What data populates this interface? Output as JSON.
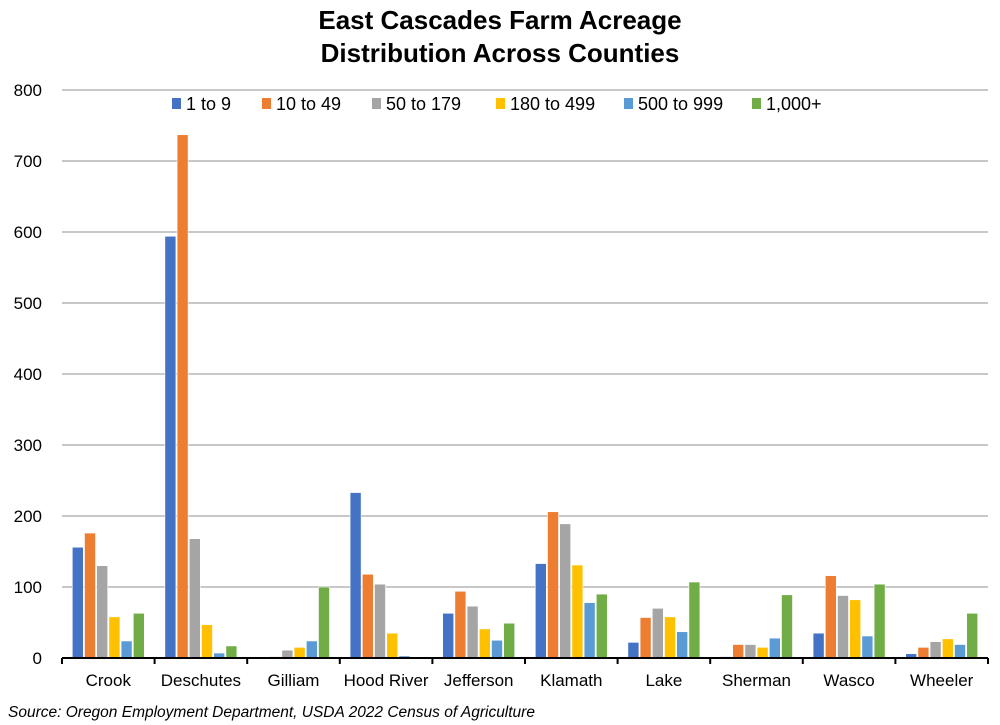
{
  "chart_data": {
    "type": "bar",
    "title_lines": [
      "East Cascades Farm Acreage",
      "Distribution Across Counties"
    ],
    "xlabel": "",
    "ylabel": "",
    "ylim": [
      0,
      800
    ],
    "yticks": [
      0,
      100,
      200,
      300,
      400,
      500,
      600,
      700,
      800
    ],
    "grid": true,
    "legend_position": "top-center",
    "categories": [
      "Crook",
      "Deschutes",
      "Gilliam",
      "Hood River",
      "Jefferson",
      "Klamath",
      "Lake",
      "Sherman",
      "Wasco",
      "Wheeler"
    ],
    "series": [
      {
        "name": "1 to 9",
        "color": "#4472C4",
        "values": [
          156,
          594,
          0,
          233,
          63,
          133,
          22,
          2,
          35,
          6
        ]
      },
      {
        "name": "10 to 49",
        "color": "#ED7D31",
        "values": [
          176,
          737,
          2,
          118,
          94,
          206,
          57,
          19,
          116,
          15
        ]
      },
      {
        "name": "50 to 179",
        "color": "#A5A5A5",
        "values": [
          130,
          168,
          11,
          104,
          73,
          189,
          70,
          19,
          88,
          23
        ]
      },
      {
        "name": "180 to 499",
        "color": "#FFC000",
        "values": [
          58,
          47,
          15,
          35,
          41,
          131,
          58,
          15,
          82,
          27
        ]
      },
      {
        "name": "500 to 999",
        "color": "#5B9BD5",
        "values": [
          24,
          7,
          24,
          3,
          25,
          78,
          37,
          28,
          31,
          19
        ]
      },
      {
        "name": "1,000+",
        "color": "#70AD47",
        "values": [
          63,
          17,
          100,
          0,
          49,
          90,
          107,
          89,
          104,
          63
        ]
      }
    ],
    "source": "Source: Oregon Employment Department, USDA 2022 Census of Agriculture"
  }
}
